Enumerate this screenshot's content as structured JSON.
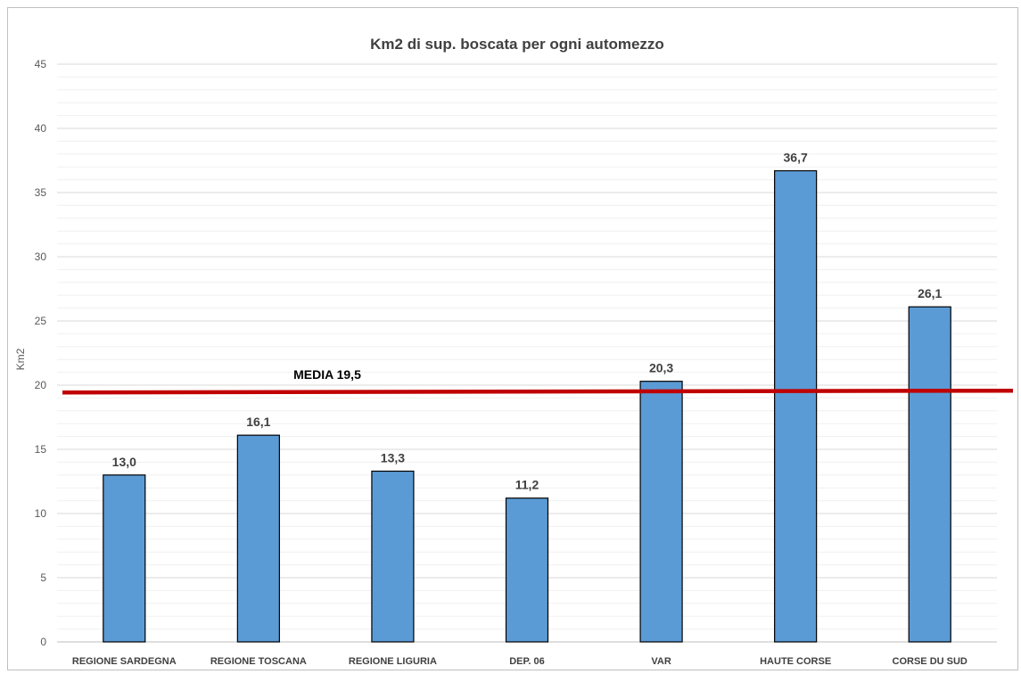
{
  "chart_data": {
    "type": "bar",
    "title": "Km2 di sup. boscata per ogni  automezzo",
    "xlabel": "",
    "ylabel": "Km2",
    "ylim": [
      0,
      45
    ],
    "yticks": [
      0,
      5,
      10,
      15,
      20,
      25,
      30,
      35,
      40,
      45
    ],
    "categories": [
      "REGIONE SARDEGNA",
      "REGIONE TOSCANA",
      "REGIONE LIGURIA",
      "DEP. 06",
      "VAR",
      "HAUTE CORSE",
      "CORSE DU SUD"
    ],
    "values": [
      13.0,
      16.1,
      13.3,
      11.2,
      20.3,
      36.7,
      26.1
    ],
    "data_labels": [
      "13,0",
      "16,1",
      "13,3",
      "11,2",
      "20,3",
      "36,7",
      "26,1"
    ],
    "reference_line": {
      "value": 19.5,
      "label": "MEDIA 19,5",
      "color": "#c00000"
    },
    "bar_color": "#5b9bd5",
    "bar_border_color": "#000000",
    "grid": true,
    "minor_grid": true,
    "legend": "none"
  }
}
